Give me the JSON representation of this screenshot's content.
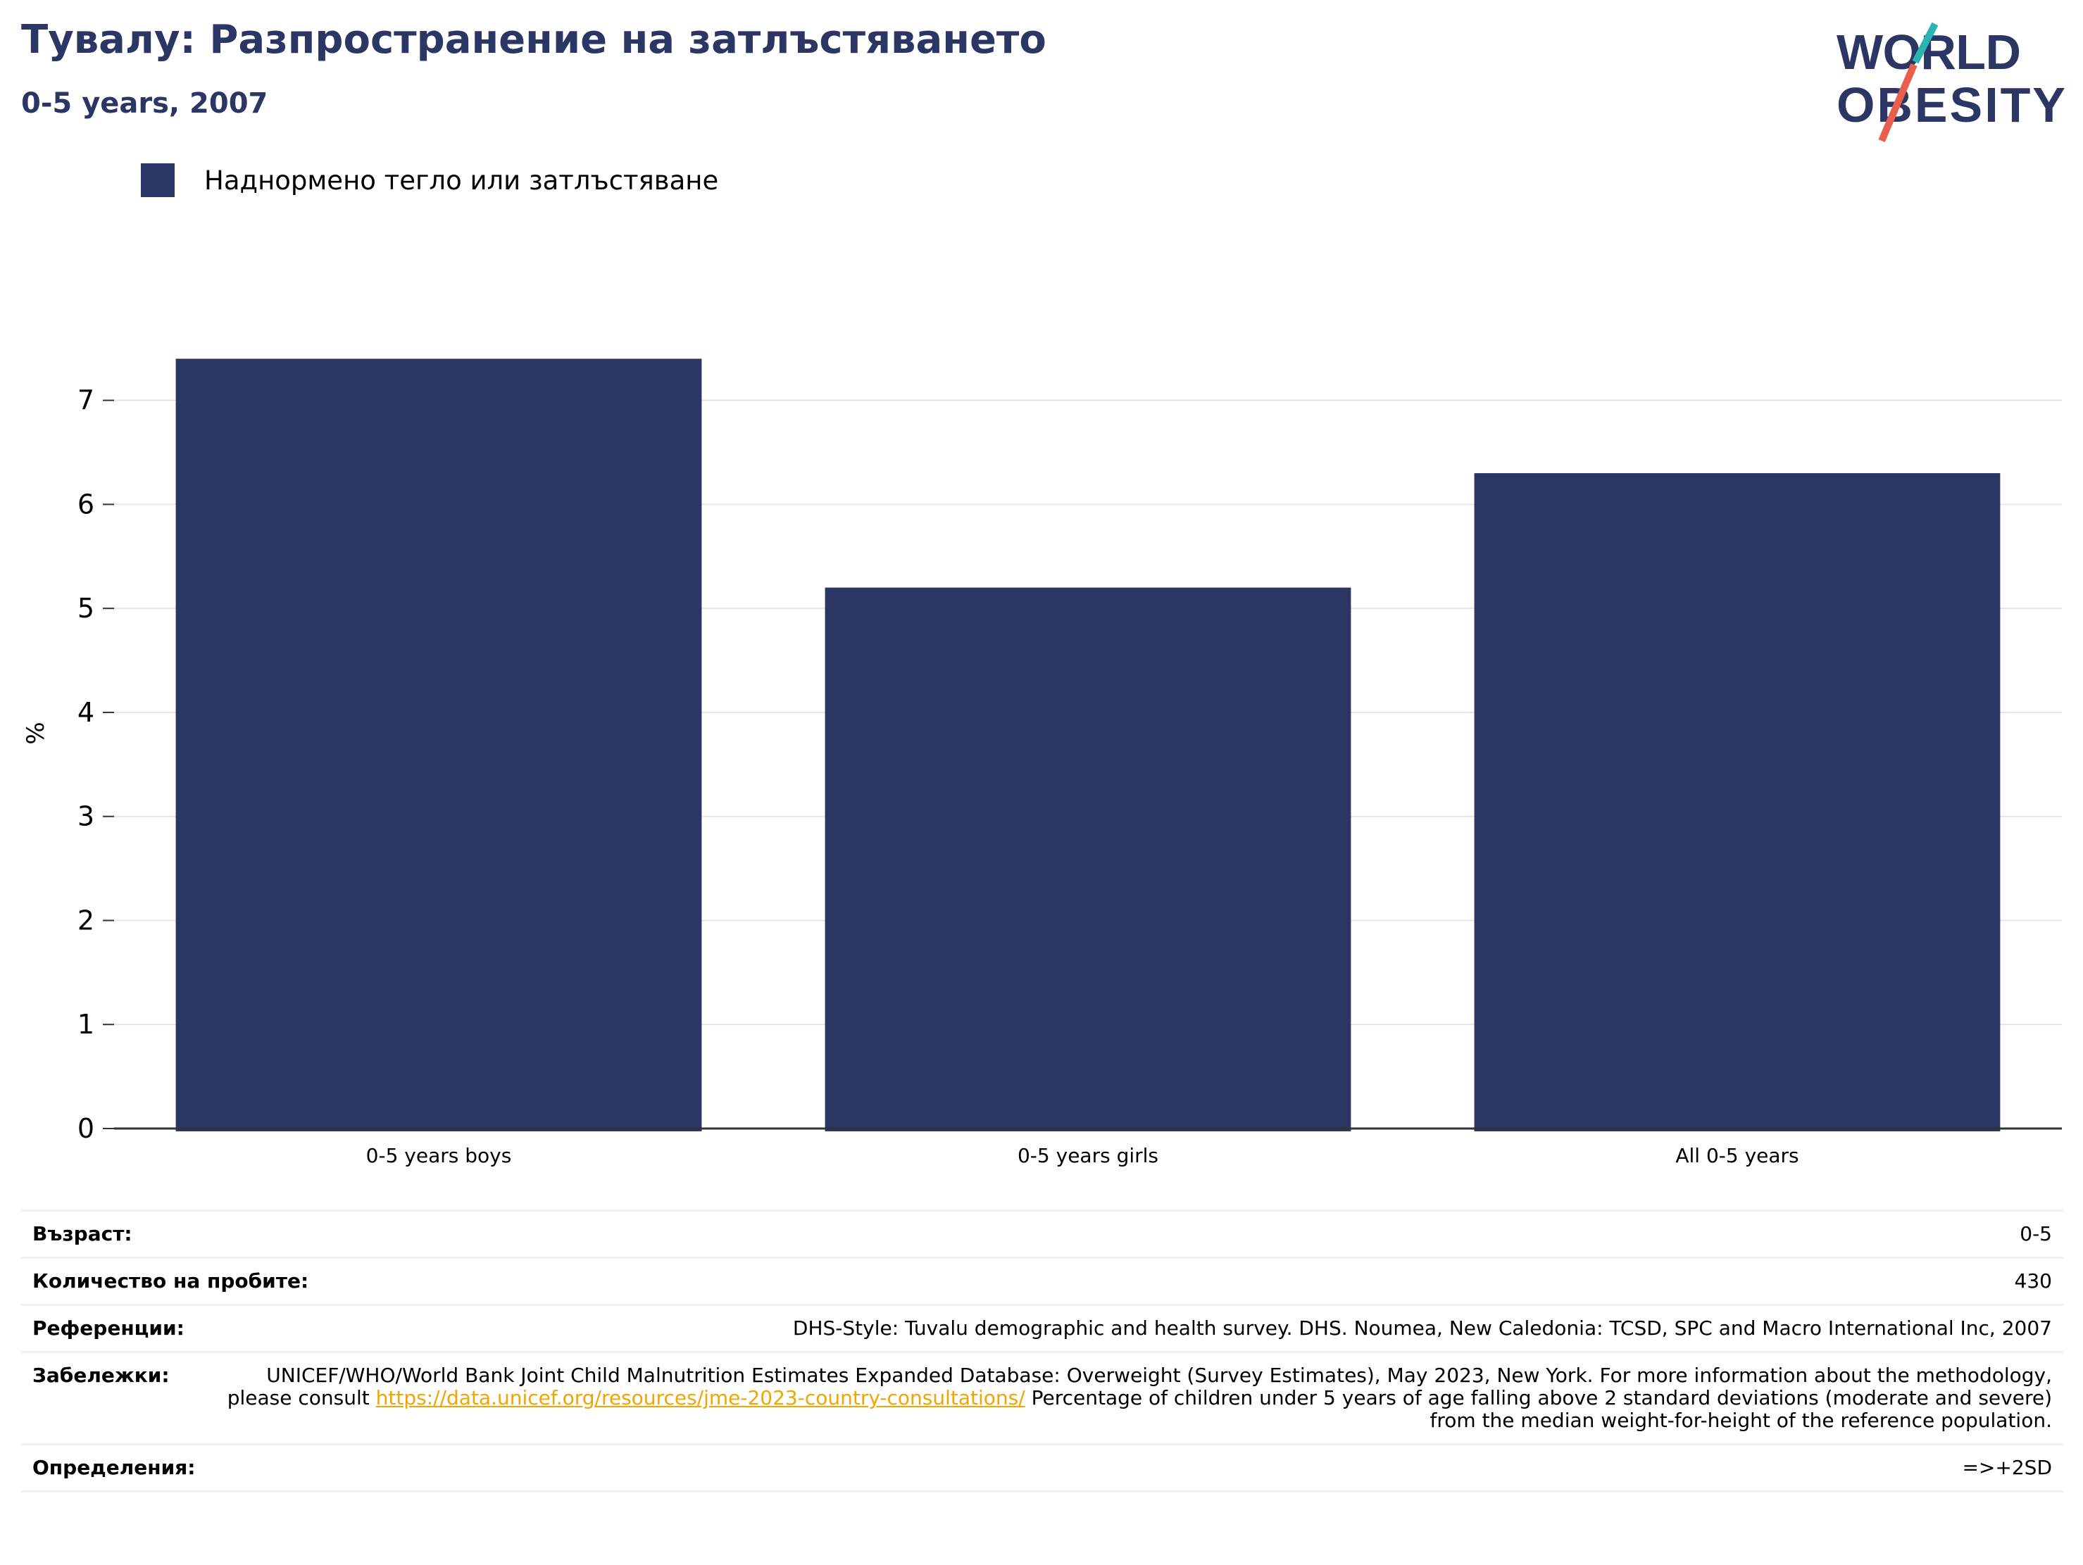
{
  "title": "Тувалу: Разпространение на затлъстяването",
  "subtitle": "0-5 years, 2007",
  "logo": {
    "line1": "WORLD",
    "line2": "OBESITY",
    "colors": [
      "#2b3664",
      "#e8604c",
      "#2bb5b0"
    ]
  },
  "legend": {
    "label": "Наднормено тегло или затлъстяване",
    "color": "#2b3664"
  },
  "chart_data": {
    "type": "bar",
    "categories": [
      "0-5 years boys",
      "0-5 years girls",
      "All 0-5 years"
    ],
    "series": [
      {
        "name": "Наднормено тегло или затлъстяване",
        "values": [
          7.4,
          5.2,
          6.3
        ],
        "color": "#2b3664"
      }
    ],
    "title": "Тувалу: Разпространение на затлъстяването",
    "subtitle": "0-5 years, 2007",
    "xlabel": "",
    "ylabel": "%",
    "ylim": [
      0,
      7.6
    ],
    "yticks": [
      0,
      1,
      2,
      3,
      4,
      5,
      6,
      7
    ],
    "grid": true,
    "legend_position": "top-left"
  },
  "info": {
    "age": {
      "label": "Възраст:",
      "value": "0-5"
    },
    "sample": {
      "label": "Количество на пробите:",
      "value": "430"
    },
    "references": {
      "label": "Референции:",
      "value": "DHS-Style: Tuvalu demographic and health survey. DHS. Noumea, New Caledonia: TCSD, SPC and Macro International Inc, 2007"
    },
    "notes": {
      "label": "Забележки:",
      "before": "UNICEF/WHO/World Bank Joint Child Malnutrition Estimates Expanded Database: Overweight (Survey Estimates), May 2023, New York. For more information about the methodology, please consult ",
      "link": "https://data.unicef.org/resources/jme-2023-country-consultations/",
      "after": " Percentage of children under 5 years of age falling above 2 standard deviations (moderate and severe) from the median weight-for-height of the reference population."
    },
    "definitions": {
      "label": "Определения:",
      "value": "=>+2SD"
    }
  }
}
